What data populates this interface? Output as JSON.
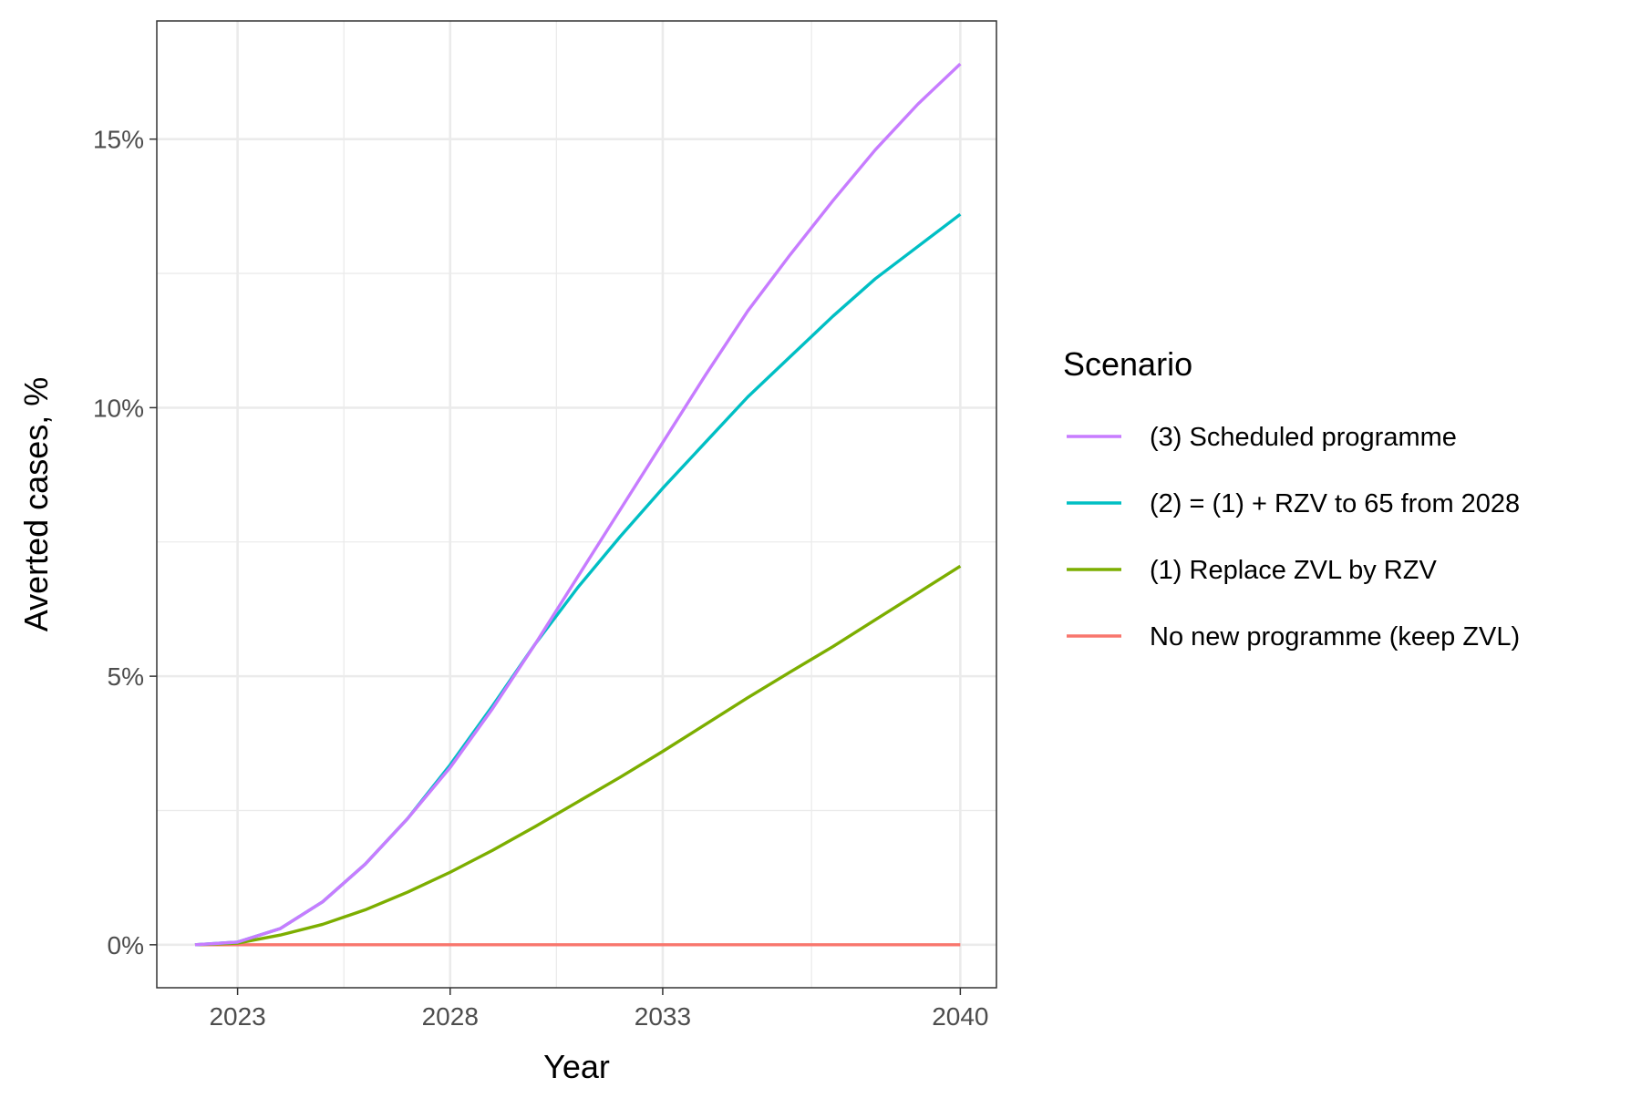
{
  "chart_data": {
    "type": "line",
    "xlabel": "Year",
    "ylabel": "Averted cases, %",
    "x_ticks": [
      2023,
      2028,
      2033,
      2040
    ],
    "x_tick_labels": [
      "2023",
      "2028",
      "2033",
      "2040"
    ],
    "y_ticks": [
      0,
      5,
      10,
      15
    ],
    "y_tick_labels": [
      "0%",
      "5%",
      "10%",
      "15%"
    ],
    "xlim": [
      2021.1,
      2040.85
    ],
    "ylim": [
      -0.8,
      17.2
    ],
    "grid": true,
    "legend_position": "right",
    "legend_title": "Scenario",
    "x": [
      2022,
      2023,
      2024,
      2025,
      2026,
      2027,
      2028,
      2029,
      2030,
      2031,
      2032,
      2033,
      2034,
      2035,
      2036,
      2037,
      2038,
      2039,
      2040
    ],
    "series": [
      {
        "name": "(3) Scheduled programme",
        "color": "#C77CFF",
        "values": [
          0,
          0.05,
          0.3,
          0.8,
          1.5,
          2.35,
          3.3,
          4.4,
          5.6,
          6.85,
          8.1,
          9.35,
          10.6,
          11.8,
          12.85,
          13.85,
          14.8,
          15.65,
          16.4
        ]
      },
      {
        "name": "(2) = (1) + RZV to 65 from 2028",
        "color": "#00BFC4",
        "values": [
          0,
          0.05,
          0.3,
          0.8,
          1.5,
          2.35,
          3.35,
          4.45,
          5.6,
          6.65,
          7.6,
          8.5,
          9.35,
          10.2,
          10.95,
          11.7,
          12.4,
          13.0,
          13.6
        ]
      },
      {
        "name": "(1) Replace ZVL by RZV",
        "color": "#7CAE00",
        "values": [
          0,
          0.03,
          0.18,
          0.38,
          0.65,
          0.98,
          1.35,
          1.76,
          2.2,
          2.66,
          3.12,
          3.6,
          4.1,
          4.6,
          5.08,
          5.55,
          6.05,
          6.55,
          7.05
        ]
      },
      {
        "name": "No new programme (keep ZVL)",
        "color": "#F8766D",
        "values": [
          0,
          0,
          0,
          0,
          0,
          0,
          0,
          0,
          0,
          0,
          0,
          0,
          0,
          0,
          0,
          0,
          0,
          0,
          0
        ]
      }
    ]
  }
}
